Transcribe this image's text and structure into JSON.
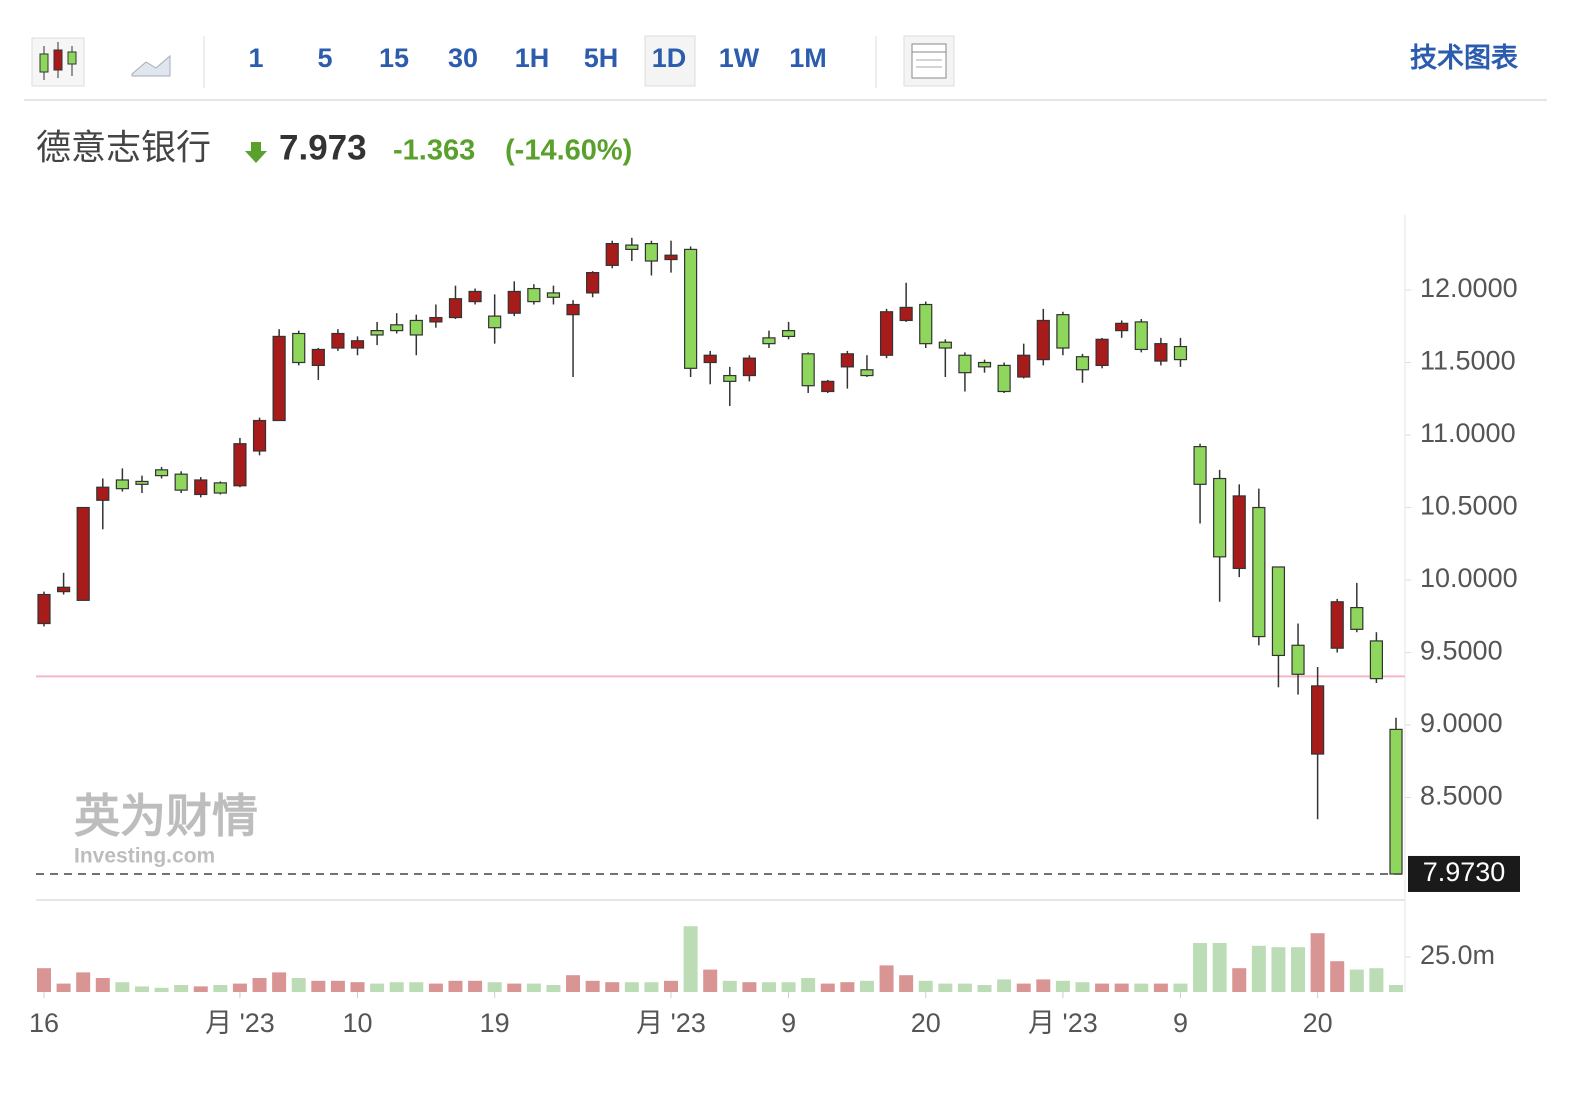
{
  "toolbar": {
    "intervals": [
      "1",
      "5",
      "15",
      "30",
      "1H",
      "5H",
      "1D",
      "1W",
      "1M"
    ],
    "selected": 6,
    "menu": "技术图表"
  },
  "header": {
    "name": "德意志银行",
    "price": "7.973",
    "change": "-1.363",
    "change_percent": "(-14.60%)"
  },
  "watermark": {
    "brand": "英为财情",
    "site": "Investing.com"
  },
  "chart_data": {
    "type": "candlestick",
    "categories": [
      "16",
      null,
      null,
      null,
      null,
      null,
      null,
      null,
      null,
      null,
      "月 '23",
      null,
      null,
      null,
      null,
      null,
      "10",
      null,
      null,
      null,
      null,
      null,
      null,
      "19",
      null,
      null,
      null,
      null,
      null,
      null,
      null,
      null,
      "月 '23",
      null,
      null,
      null,
      null,
      null,
      "9",
      null,
      null,
      null,
      null,
      null,
      null,
      "20",
      null,
      null,
      null,
      null,
      null,
      null,
      "月 '23",
      null,
      null,
      null,
      null,
      null,
      "9",
      null,
      null,
      null,
      null,
      null,
      null,
      "20",
      null,
      null,
      null,
      null
    ],
    "open": [
      9.7,
      9.92,
      9.86,
      10.55,
      10.69,
      10.68,
      10.76,
      10.73,
      10.59,
      10.67,
      10.65,
      10.89,
      11.1,
      11.7,
      11.48,
      11.6,
      11.6,
      11.72,
      11.76,
      11.79,
      11.78,
      11.81,
      11.92,
      11.82,
      11.84,
      12.01,
      11.98,
      11.83,
      11.98,
      12.17,
      12.31,
      12.32,
      12.21,
      12.28,
      11.5,
      11.41,
      11.41,
      11.67,
      11.72,
      11.56,
      11.3,
      11.47,
      11.45,
      11.55,
      11.79,
      11.9,
      11.64,
      11.55,
      11.5,
      11.48,
      11.4,
      11.52,
      11.83,
      11.54,
      11.48,
      11.72,
      11.78,
      11.51,
      11.61,
      10.92,
      10.7,
      10.08,
      10.5,
      10.09,
      9.55,
      8.8,
      9.53,
      9.81,
      9.58,
      8.97
    ],
    "high": [
      9.92,
      10.05,
      10.5,
      10.7,
      10.77,
      10.72,
      10.78,
      10.75,
      10.71,
      10.68,
      10.98,
      11.12,
      11.73,
      11.72,
      11.6,
      11.73,
      11.68,
      11.78,
      11.84,
      11.83,
      11.9,
      12.03,
      12.01,
      11.97,
      12.06,
      12.04,
      12.03,
      11.93,
      12.13,
      12.34,
      12.36,
      12.34,
      12.34,
      12.3,
      11.58,
      11.47,
      11.55,
      11.72,
      11.78,
      11.57,
      11.38,
      11.58,
      11.55,
      11.87,
      12.05,
      11.92,
      11.66,
      11.57,
      11.52,
      11.5,
      11.63,
      11.87,
      11.85,
      11.56,
      11.67,
      11.79,
      11.8,
      11.67,
      11.67,
      10.94,
      10.76,
      10.66,
      10.63,
      10.09,
      9.7,
      9.4,
      9.87,
      9.98,
      9.64,
      9.05
    ],
    "low": [
      9.68,
      9.9,
      9.86,
      10.35,
      10.61,
      10.6,
      10.7,
      10.6,
      10.57,
      10.59,
      10.64,
      10.86,
      11.1,
      11.48,
      11.38,
      11.58,
      11.55,
      11.62,
      11.7,
      11.55,
      11.74,
      11.8,
      11.9,
      11.63,
      11.82,
      11.9,
      11.9,
      11.4,
      11.95,
      12.15,
      12.2,
      12.1,
      12.12,
      11.4,
      11.35,
      11.2,
      11.37,
      11.6,
      11.66,
      11.29,
      11.29,
      11.32,
      11.4,
      11.53,
      11.78,
      11.6,
      11.4,
      11.3,
      11.43,
      11.29,
      11.39,
      11.48,
      11.55,
      11.36,
      11.46,
      11.67,
      11.57,
      11.48,
      11.47,
      10.39,
      9.85,
      10.02,
      9.55,
      9.26,
      9.21,
      8.35,
      9.5,
      9.64,
      9.29,
      7.973
    ],
    "close": [
      9.9,
      9.95,
      10.5,
      10.64,
      10.63,
      10.66,
      10.72,
      10.62,
      10.69,
      10.6,
      10.94,
      11.1,
      11.68,
      11.5,
      11.59,
      11.7,
      11.65,
      11.69,
      11.72,
      11.69,
      11.81,
      11.94,
      11.99,
      11.74,
      11.99,
      11.92,
      11.95,
      11.9,
      12.12,
      12.32,
      12.28,
      12.2,
      12.24,
      11.46,
      11.55,
      11.37,
      11.53,
      11.63,
      11.68,
      11.34,
      11.37,
      11.56,
      11.41,
      11.85,
      11.88,
      11.63,
      11.6,
      11.43,
      11.47,
      11.3,
      11.55,
      11.79,
      11.6,
      11.45,
      11.66,
      11.77,
      11.59,
      11.63,
      11.52,
      10.66,
      10.16,
      10.58,
      9.61,
      9.48,
      9.35,
      9.27,
      9.85,
      9.66,
      9.32,
      7.973
    ],
    "volume": [
      17000000,
      6000000,
      14000000,
      10000000,
      7000000,
      4000000,
      3000000,
      5000000,
      4000000,
      5000000,
      6000000,
      10000000,
      14000000,
      10000000,
      8000000,
      8000000,
      7000000,
      6000000,
      7000000,
      7000000,
      6000000,
      8000000,
      8000000,
      7000000,
      6000000,
      6000000,
      5000000,
      12000000,
      8000000,
      7000000,
      7000000,
      7000000,
      8000000,
      47000000,
      16000000,
      8000000,
      7000000,
      7000000,
      7000000,
      10000000,
      6000000,
      7000000,
      8000000,
      19000000,
      12000000,
      8000000,
      6000000,
      6000000,
      5000000,
      9000000,
      6000000,
      9000000,
      8000000,
      7000000,
      6000000,
      6000000,
      6000000,
      6000000,
      6000000,
      35000000,
      35000000,
      17000000,
      33000000,
      32000000,
      32000000,
      42000000,
      22000000,
      16000000,
      17000000,
      5000000
    ],
    "up_color": "#a81b1b",
    "down_color": "#8fd65c",
    "volume_up_color": "#d99494",
    "volume_down_color": "#bcdcb6",
    "ylim": [
      7.79,
      12.52
    ],
    "yticks": [
      {
        "value": 8.5,
        "label": "8.5000"
      },
      {
        "value": 9,
        "label": "9.0000"
      },
      {
        "value": 9.5,
        "label": "9.5000"
      },
      {
        "value": 10,
        "label": "10.0000"
      },
      {
        "value": 10.5,
        "label": "10.5000"
      },
      {
        "value": 11,
        "label": "11.0000"
      },
      {
        "value": 11.5,
        "label": "11.5000"
      },
      {
        "value": 12,
        "label": "12.0000"
      }
    ],
    "volume_lim": [
      0,
      50000000
    ],
    "volume_ticks": [
      {
        "value": 25000000,
        "label": "25.0m"
      }
    ],
    "previous_close": 9.336,
    "previous_close_color": "#f2b8c6",
    "last_price": {
      "value": 7.973,
      "label": "7.9730"
    }
  }
}
